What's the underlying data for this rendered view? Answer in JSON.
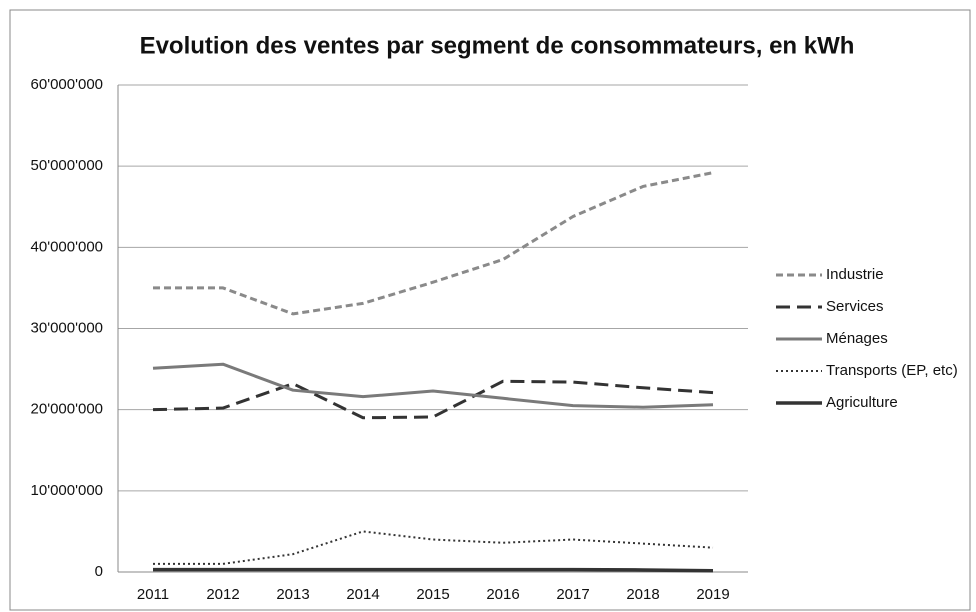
{
  "chart_data": {
    "type": "line",
    "title": "Evolution des ventes par segment de consommateurs, en kWh",
    "categories": [
      "2011",
      "2012",
      "2013",
      "2014",
      "2015",
      "2016",
      "2017",
      "2018",
      "2019"
    ],
    "series": [
      {
        "name": "Industrie",
        "color": "#8a8a8a",
        "style": "dashed",
        "values": [
          35000000,
          35000000,
          31800000,
          33100000,
          35700000,
          38500000,
          43800000,
          47500000,
          49200000
        ]
      },
      {
        "name": "Services",
        "color": "#333333",
        "style": "long-dashed",
        "values": [
          20000000,
          20200000,
          23200000,
          19000000,
          19100000,
          23500000,
          23400000,
          22700000,
          22100000
        ]
      },
      {
        "name": "Ménages",
        "color": "#7a7a7a",
        "style": "solid",
        "values": [
          25100000,
          25600000,
          22400000,
          21600000,
          22300000,
          21400000,
          20500000,
          20300000,
          20600000
        ]
      },
      {
        "name": "Transports (EP, etc)",
        "color": "#333333",
        "style": "dotted",
        "values": [
          1000000,
          1000000,
          2200000,
          5000000,
          4000000,
          3600000,
          4000000,
          3500000,
          3000000
        ]
      },
      {
        "name": "Agriculture",
        "color": "#333333",
        "style": "thick",
        "values": [
          300000,
          300000,
          300000,
          300000,
          300000,
          300000,
          300000,
          250000,
          150000
        ]
      }
    ],
    "ylim": [
      0,
      60000000
    ],
    "yticks": [
      0,
      {
        "value": 10000000,
        "label": "10'000'000"
      },
      {
        "value": 20000000,
        "label": "20'000'000"
      },
      {
        "value": 30000000,
        "label": "30'000'000"
      },
      {
        "value": 40000000,
        "label": "40'000'000"
      },
      {
        "value": 50000000,
        "label": "50'000'000"
      },
      {
        "value": 60000000,
        "label": "60'000'000"
      }
    ],
    "grid": true,
    "legend": "right"
  }
}
